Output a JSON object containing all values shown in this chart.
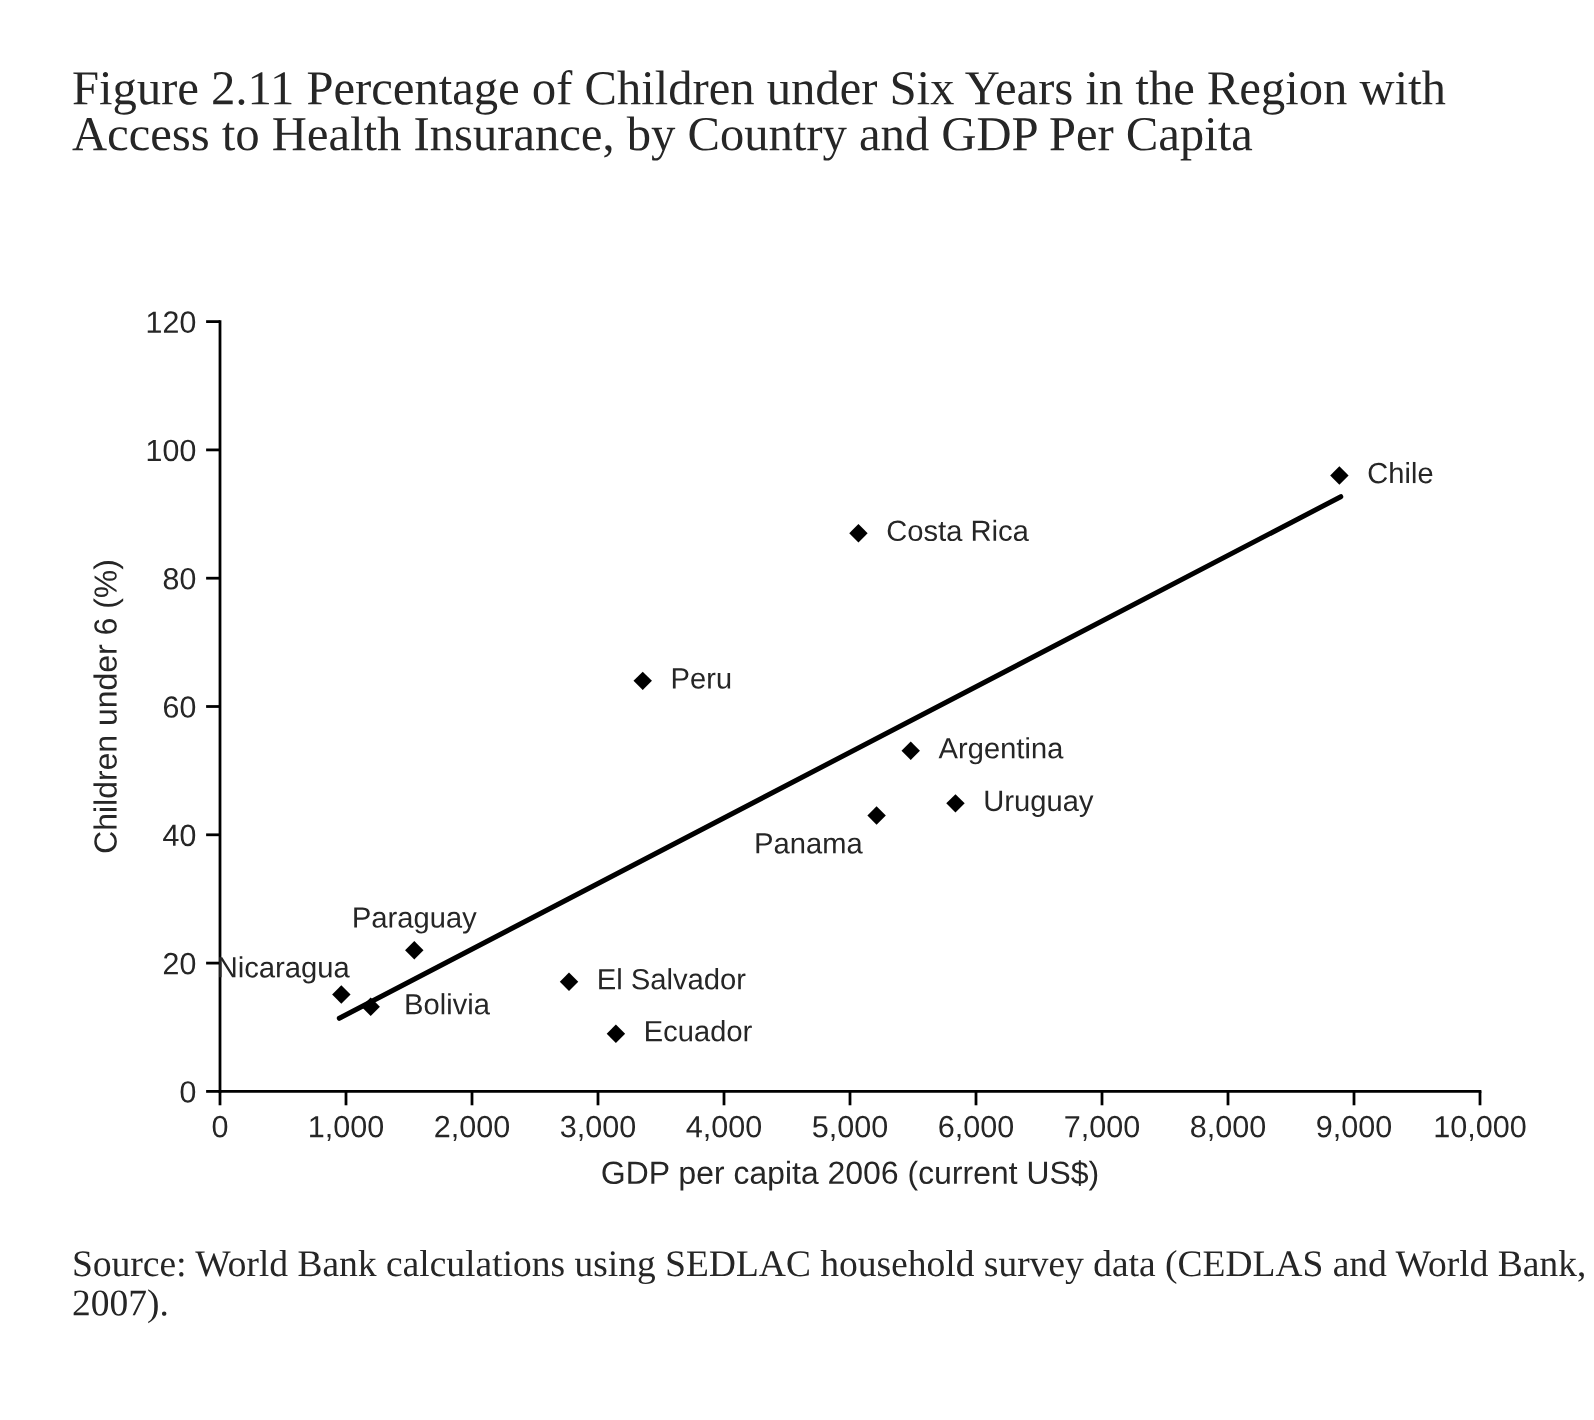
{
  "chart_data": {
    "type": "scatter",
    "title": "Figure 2.11 Percentage of Children under Six Years in the Region with Access to Health Insurance, by Country and GDP Per Capita",
    "xlabel": "GDP per capita 2006 (current US$)",
    "ylabel": "Children under 6 (%)",
    "series": [
      {
        "color": "#000000",
        "marker": "diamond",
        "x": [
          963,
          1196,
          1542,
          2770,
          3142,
          3355,
          5067,
          5211,
          5482,
          5837,
          8884
        ],
        "values": [
          15.1,
          13.2,
          22.0,
          17.1,
          9.0,
          64.0,
          87.0,
          43.0,
          53.1,
          44.9,
          96.0
        ]
      },
      {
        "type": "line",
        "color": "#000000",
        "marker": "none",
        "line_style": "solid",
        "x": [
          947,
          8895
        ],
        "values": [
          11.4,
          92.7
        ]
      }
    ],
    "annotations": [
      {
        "text": "Nicaragua",
        "x": 963,
        "y": 15.1
      },
      {
        "text": "Bolivia",
        "x": 1196,
        "y": 13.2
      },
      {
        "text": "Paraguay",
        "x": 1542,
        "y": 22.0
      },
      {
        "text": "El Salvador",
        "x": 2770,
        "y": 17.1
      },
      {
        "text": "Ecuador",
        "x": 3142,
        "y": 9.0
      },
      {
        "text": "Peru",
        "x": 3355,
        "y": 64.0
      },
      {
        "text": "Costa Rica",
        "x": 5067,
        "y": 87.0
      },
      {
        "text": "Panama",
        "x": 5211,
        "y": 43.0
      },
      {
        "text": "Argentina",
        "x": 5482,
        "y": 53.1
      },
      {
        "text": "Uruguay",
        "x": 5837,
        "y": 44.9
      },
      {
        "text": "Chile",
        "x": 8884,
        "y": 96.0
      },
      "Source: World Bank calculations using SEDLAC household survey data (CEDLAS and World Bank, 2007)."
    ],
    "xlim": [
      0,
      10000
    ],
    "xticks": [
      0,
      {
        "value": 1000,
        "label": "1,000"
      },
      {
        "value": 2000,
        "label": "2,000"
      },
      {
        "value": 3000,
        "label": "3,000"
      },
      {
        "value": 4000,
        "label": "4,000"
      },
      {
        "value": 5000,
        "label": "5,000"
      },
      {
        "value": 6000,
        "label": "6,000"
      },
      {
        "value": 7000,
        "label": "7,000"
      },
      {
        "value": 8000,
        "label": "8,000"
      },
      {
        "value": 9000,
        "label": "9,000"
      },
      {
        "value": 10000,
        "label": "10,000"
      }
    ],
    "ylim": [
      0,
      120
    ],
    "yticks": [
      0,
      20,
      40,
      60,
      80,
      100,
      120
    ],
    "grid": false,
    "legend": false
  }
}
